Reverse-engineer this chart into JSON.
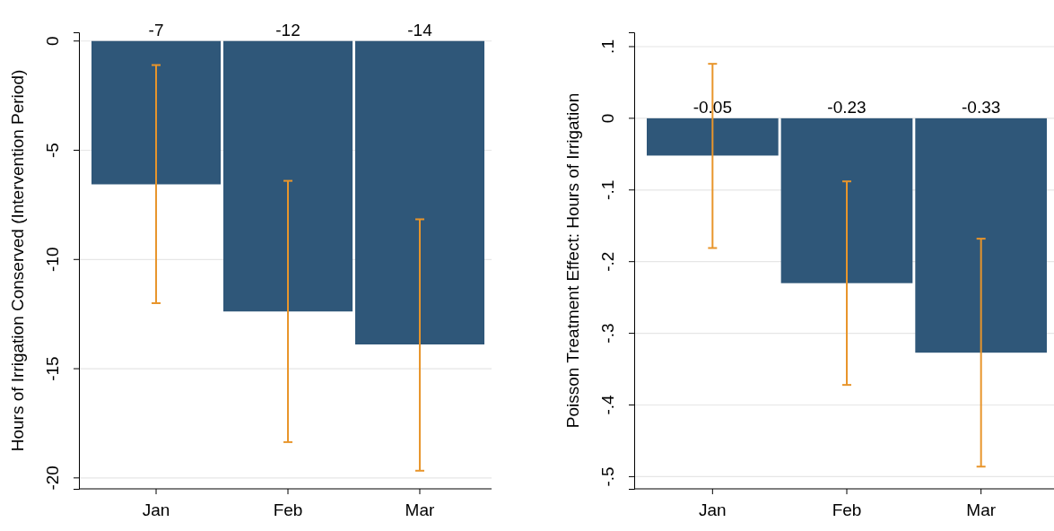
{
  "chart_data": [
    {
      "type": "bar",
      "ylabel": "Hours of Irrigation Conserved (Intervention Period)",
      "categories": [
        "Jan",
        "Feb",
        "Mar"
      ],
      "series": [
        {
          "color": "#2f5779",
          "values": [
            -6.56,
            -12.38,
            -13.89
          ],
          "errors": [
            [
              -12.0,
              -1.1
            ],
            [
              -18.36,
              -6.4
            ],
            [
              -19.67,
              -8.16
            ]
          ],
          "value_labels": [
            "-7",
            "-12",
            "-14"
          ]
        }
      ],
      "ylim": [
        -20.5,
        0.4
      ],
      "yticks": [
        0,
        -5,
        -10,
        -15,
        -20
      ],
      "grid": "y"
    },
    {
      "type": "bar",
      "ylabel": "Poisson Treatment Effect: Hours of Irrigation",
      "categories": [
        "Jan",
        "Feb",
        "Mar"
      ],
      "series": [
        {
          "color": "#2f5779",
          "values": [
            -0.052,
            -0.23,
            -0.327
          ],
          "errors": [
            [
              -0.181,
              0.076
            ],
            [
              -0.372,
              -0.088
            ],
            [
              -0.486,
              -0.168
            ]
          ],
          "value_labels": [
            "-0.05",
            "-0.23",
            "-0.33"
          ]
        }
      ],
      "ylim": [
        -0.517,
        0.12
      ],
      "yticks": [
        {
          "value": 0.1,
          "label": ".1"
        },
        0,
        {
          "value": -0.1,
          "label": "-.1"
        },
        {
          "value": -0.2,
          "label": "-.2"
        },
        {
          "value": -0.3,
          "label": "-.3"
        },
        {
          "value": -0.4,
          "label": "-.4"
        },
        {
          "value": -0.5,
          "label": "-.5"
        }
      ],
      "grid": "y"
    }
  ]
}
